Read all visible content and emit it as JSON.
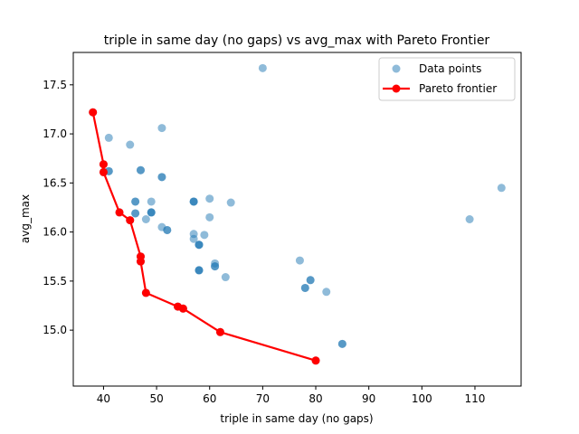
{
  "chart_data": {
    "type": "scatter",
    "title": "triple in same day (no gaps) vs avg_max with Pareto Frontier",
    "xlabel": "triple in same day (no gaps)",
    "ylabel": "avg_max",
    "xlim": [
      34.3,
      118.7
    ],
    "ylim": [
      14.43,
      17.83
    ],
    "xticks": [
      40,
      50,
      60,
      70,
      80,
      90,
      100,
      110
    ],
    "yticks": [
      15.0,
      15.5,
      16.0,
      16.5,
      17.0,
      17.5
    ],
    "ytick_labels": [
      "15.0",
      "15.5",
      "16.0",
      "16.5",
      "17.0",
      "17.5"
    ],
    "grid": false,
    "legend_position": "top-right",
    "series": [
      {
        "name": "Data points",
        "kind": "scatter",
        "color": "#1f77b4",
        "alpha": 0.5,
        "points": [
          {
            "x": 70,
            "y": 17.67
          },
          {
            "x": 51,
            "y": 17.06
          },
          {
            "x": 41,
            "y": 16.96
          },
          {
            "x": 45,
            "y": 16.89
          },
          {
            "x": 41,
            "y": 16.62
          },
          {
            "x": 41,
            "y": 16.62
          },
          {
            "x": 47,
            "y": 16.63
          },
          {
            "x": 47,
            "y": 16.63
          },
          {
            "x": 51,
            "y": 16.56
          },
          {
            "x": 51,
            "y": 16.56
          },
          {
            "x": 60,
            "y": 16.34
          },
          {
            "x": 64,
            "y": 16.3
          },
          {
            "x": 46,
            "y": 16.31
          },
          {
            "x": 46,
            "y": 16.31
          },
          {
            "x": 49,
            "y": 16.31
          },
          {
            "x": 57,
            "y": 16.31
          },
          {
            "x": 57,
            "y": 16.31
          },
          {
            "x": 57,
            "y": 16.31
          },
          {
            "x": 46,
            "y": 16.19
          },
          {
            "x": 46,
            "y": 16.19
          },
          {
            "x": 49,
            "y": 16.2
          },
          {
            "x": 49,
            "y": 16.2
          },
          {
            "x": 49,
            "y": 16.2
          },
          {
            "x": 48,
            "y": 16.13
          },
          {
            "x": 60,
            "y": 16.15
          },
          {
            "x": 51,
            "y": 16.05
          },
          {
            "x": 52,
            "y": 16.02
          },
          {
            "x": 52,
            "y": 16.02
          },
          {
            "x": 57,
            "y": 15.98
          },
          {
            "x": 57,
            "y": 15.93
          },
          {
            "x": 59,
            "y": 15.97
          },
          {
            "x": 58,
            "y": 15.87
          },
          {
            "x": 58,
            "y": 15.87
          },
          {
            "x": 58,
            "y": 15.87
          },
          {
            "x": 61,
            "y": 15.68
          },
          {
            "x": 61,
            "y": 15.65
          },
          {
            "x": 61,
            "y": 15.65
          },
          {
            "x": 58,
            "y": 15.61
          },
          {
            "x": 58,
            "y": 15.61
          },
          {
            "x": 58,
            "y": 15.61
          },
          {
            "x": 63,
            "y": 15.54
          },
          {
            "x": 77,
            "y": 15.71
          },
          {
            "x": 79,
            "y": 15.51
          },
          {
            "x": 79,
            "y": 15.51
          },
          {
            "x": 78,
            "y": 15.43
          },
          {
            "x": 78,
            "y": 15.43
          },
          {
            "x": 82,
            "y": 15.39
          },
          {
            "x": 85,
            "y": 14.86
          },
          {
            "x": 85,
            "y": 14.86
          },
          {
            "x": 109,
            "y": 16.13
          },
          {
            "x": 115,
            "y": 16.45
          },
          {
            "x": 38,
            "y": 17.22
          },
          {
            "x": 40,
            "y": 16.69
          },
          {
            "x": 40,
            "y": 16.61
          },
          {
            "x": 43,
            "y": 16.2
          },
          {
            "x": 45,
            "y": 16.12
          },
          {
            "x": 47,
            "y": 15.75
          },
          {
            "x": 47,
            "y": 15.7
          },
          {
            "x": 48,
            "y": 15.38
          },
          {
            "x": 54,
            "y": 15.24
          },
          {
            "x": 55,
            "y": 15.22
          },
          {
            "x": 62,
            "y": 14.98
          },
          {
            "x": 80,
            "y": 14.69
          }
        ]
      },
      {
        "name": "Pareto frontier",
        "kind": "line-marker",
        "color": "#ff0000",
        "points": [
          {
            "x": 38,
            "y": 17.22
          },
          {
            "x": 40,
            "y": 16.69
          },
          {
            "x": 40,
            "y": 16.61
          },
          {
            "x": 43,
            "y": 16.2
          },
          {
            "x": 45,
            "y": 16.12
          },
          {
            "x": 47,
            "y": 15.75
          },
          {
            "x": 47,
            "y": 15.7
          },
          {
            "x": 48,
            "y": 15.38
          },
          {
            "x": 54,
            "y": 15.24
          },
          {
            "x": 55,
            "y": 15.22
          },
          {
            "x": 62,
            "y": 14.98
          },
          {
            "x": 80,
            "y": 14.69
          }
        ]
      }
    ]
  }
}
